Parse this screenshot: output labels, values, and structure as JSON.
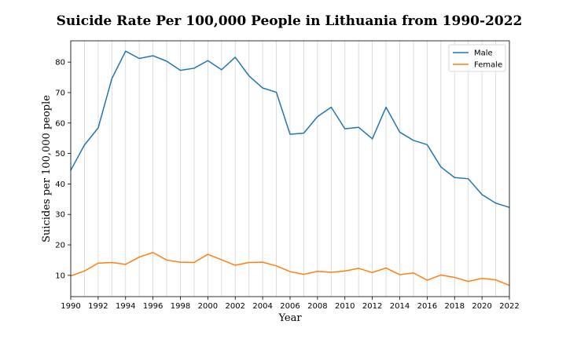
{
  "chart_data": {
    "type": "line",
    "title": "Suicide Rate Per 100,000 People in Lithuania from 1990-2022",
    "xlabel": "Year",
    "ylabel": "Suicides per 100,000 people",
    "x": [
      1990,
      1991,
      1992,
      1993,
      1994,
      1995,
      1996,
      1997,
      1998,
      1999,
      2000,
      2001,
      2002,
      2003,
      2004,
      2005,
      2006,
      2007,
      2008,
      2009,
      2010,
      2011,
      2012,
      2013,
      2014,
      2015,
      2016,
      2017,
      2018,
      2019,
      2020,
      2021,
      2022
    ],
    "xlim": [
      1990,
      2022
    ],
    "ylim": [
      3,
      87
    ],
    "xticks": [
      "1990",
      "1992",
      "1994",
      "1996",
      "1998",
      "2000",
      "2002",
      "2004",
      "2006",
      "2008",
      "2010",
      "2012",
      "2014",
      "2016",
      "2018",
      "2020",
      "2022"
    ],
    "yticks": [
      "10",
      "20",
      "30",
      "40",
      "50",
      "60",
      "70",
      "80"
    ],
    "grid": "vertical",
    "legend_position": "top-right",
    "series": [
      {
        "name": "Male",
        "color": "#1f77b4",
        "values": [
          44.5,
          52.8,
          58.4,
          74.6,
          83.6,
          81.2,
          82.1,
          80.3,
          77.3,
          78.0,
          80.5,
          77.5,
          81.6,
          75.5,
          71.5,
          70.1,
          56.3,
          56.7,
          62.1,
          65.2,
          58.1,
          58.6,
          54.8,
          65.2,
          57.0,
          54.3,
          52.9,
          45.6,
          42.1,
          41.7,
          36.5,
          33.7,
          32.3
        ]
      },
      {
        "name": "Female",
        "color": "#ff7f0e",
        "values": [
          9.8,
          11.4,
          14.0,
          14.2,
          13.6,
          16.0,
          17.5,
          15.0,
          14.3,
          14.2,
          16.9,
          15.1,
          13.3,
          14.2,
          14.3,
          13.1,
          11.2,
          10.3,
          11.3,
          11.0,
          11.4,
          12.3,
          10.9,
          12.4,
          10.2,
          10.8,
          8.4,
          10.1,
          9.3,
          8.0,
          9.0,
          8.5,
          6.7
        ]
      }
    ]
  }
}
